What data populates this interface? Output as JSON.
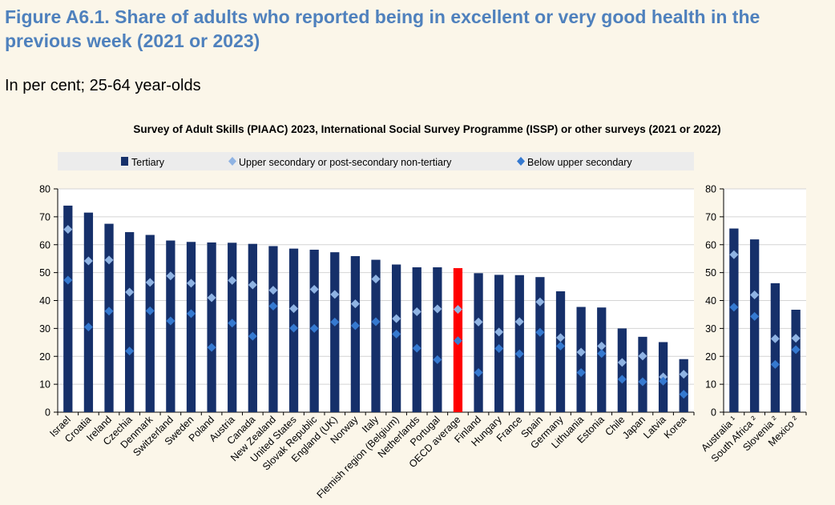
{
  "header": {
    "title": "Figure A6.1. Share of adults who reported being in excellent or very good health in the previous week (2021 or 2023)",
    "subtitle": "In per cent; 25-64 year-olds"
  },
  "colors": {
    "tertiary": "#16306a",
    "upper_secondary": "#8fb3e3",
    "below_upper": "#3579d0",
    "highlight": "#ff0000"
  },
  "chart_data": [
    {
      "type": "bar",
      "title": "Survey of Adult Skills (PIAAC) 2023, International Social Survey Programme (ISSP) or other surveys (2021 or 2022)",
      "legend": [
        "Tertiary",
        "Upper secondary or post-secondary non-tertiary",
        "Below upper secondary"
      ],
      "legend_position": "top",
      "ylim": [
        0,
        80
      ],
      "yticks": [
        0,
        10,
        20,
        30,
        40,
        50,
        60,
        70,
        80
      ],
      "highlight": "OECD average",
      "categories": [
        "Israel",
        "Croatia",
        "Ireland",
        "Czechia",
        "Denmark",
        "Switzerland",
        "Sweden",
        "Poland",
        "Austria",
        "Canada",
        "New Zealand",
        "United States",
        "Slovak Republic",
        "England (UK)",
        "Norway",
        "Italy",
        "Flemish region (Belgium)",
        "Netherlands",
        "Portugal",
        "OECD average",
        "Finland",
        "Hungary",
        "France",
        "Spain",
        "Germany",
        "Lithuania",
        "Estonia",
        "Chile",
        "Japan",
        "Latvia",
        "Korea"
      ],
      "series": [
        {
          "name": "Tertiary",
          "values": [
            74,
            71.5,
            67.5,
            64.5,
            63.5,
            61.5,
            61,
            60.8,
            60.7,
            60.3,
            59.5,
            58.6,
            58.2,
            57.3,
            55.9,
            54.6,
            52.9,
            51.9,
            51.9,
            51.6,
            49.8,
            49.2,
            49.1,
            48.4,
            43.3,
            37.7,
            37.5,
            30,
            27,
            25.1,
            19
          ]
        },
        {
          "name": "Upper secondary or post-secondary non-tertiary",
          "values": [
            65.5,
            54.2,
            54.5,
            43,
            46.5,
            48.8,
            46.2,
            41,
            47.2,
            45.6,
            43.7,
            37.1,
            44,
            42.2,
            38.8,
            47.7,
            33.5,
            36,
            37,
            36.8,
            32.3,
            28.7,
            32.4,
            39.5,
            26.7,
            21.5,
            23.7,
            17.8,
            20.1,
            12.6,
            13.6
          ]
        },
        {
          "name": "Below upper secondary",
          "values": [
            47.3,
            30.5,
            36.2,
            21.9,
            36.3,
            32.7,
            35.3,
            23.2,
            31.9,
            27.2,
            38,
            30.1,
            30,
            32.3,
            31,
            32.4,
            28,
            22.9,
            18.8,
            25.6,
            14.2,
            22.8,
            20.9,
            28.6,
            23.7,
            14.2,
            21,
            11.8,
            10.9,
            11.1,
            6.4
          ]
        }
      ]
    },
    {
      "type": "bar",
      "ylim": [
        0,
        80
      ],
      "yticks": [
        0,
        10,
        20,
        30,
        40,
        50,
        60,
        70,
        80
      ],
      "categories": [
        "Australia ¹",
        "South Africa ²",
        "Slovenia ²",
        "Mexico ²"
      ],
      "series": [
        {
          "name": "Tertiary",
          "values": [
            65.8,
            61.9,
            46.2,
            36.7
          ]
        },
        {
          "name": "Upper secondary or post-secondary non-tertiary",
          "values": [
            56.4,
            42,
            26.3,
            26.5
          ]
        },
        {
          "name": "Below upper secondary",
          "values": [
            37.6,
            34.3,
            17.1,
            22.4
          ]
        }
      ]
    }
  ]
}
